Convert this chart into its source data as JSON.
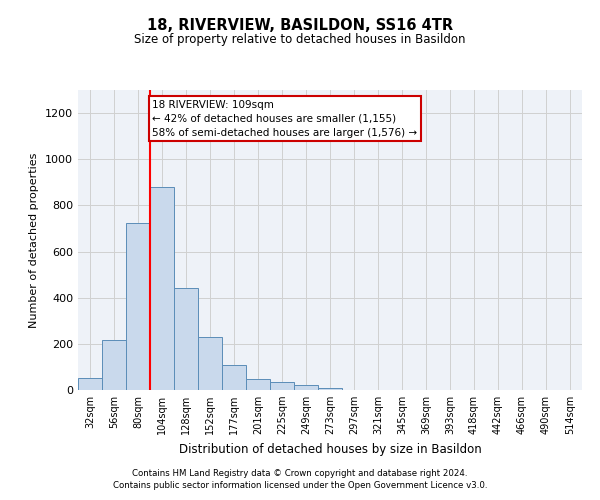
{
  "title": "18, RIVERVIEW, BASILDON, SS16 4TR",
  "subtitle": "Size of property relative to detached houses in Basildon",
  "xlabel": "Distribution of detached houses by size in Basildon",
  "ylabel": "Number of detached properties",
  "footer1": "Contains HM Land Registry data © Crown copyright and database right 2024.",
  "footer2": "Contains public sector information licensed under the Open Government Licence v3.0.",
  "bin_labels": [
    "32sqm",
    "56sqm",
    "80sqm",
    "104sqm",
    "128sqm",
    "152sqm",
    "177sqm",
    "201sqm",
    "225sqm",
    "249sqm",
    "273sqm",
    "297sqm",
    "321sqm",
    "345sqm",
    "369sqm",
    "393sqm",
    "418sqm",
    "442sqm",
    "466sqm",
    "490sqm",
    "514sqm"
  ],
  "bar_values": [
    50,
    215,
    725,
    880,
    440,
    230,
    108,
    47,
    35,
    22,
    10,
    0,
    0,
    0,
    0,
    0,
    0,
    0,
    0,
    0,
    0
  ],
  "bar_color": "#c9d9ec",
  "bar_edge_color": "#5b8db8",
  "grid_color": "#d0d0d0",
  "red_line_x": 3.0,
  "annotation_text": "18 RIVERVIEW: 109sqm\n← 42% of detached houses are smaller (1,155)\n58% of semi-detached houses are larger (1,576) →",
  "annotation_box_color": "#ffffff",
  "annotation_box_edge": "#cc0000",
  "ylim": [
    0,
    1300
  ],
  "yticks": [
    0,
    200,
    400,
    600,
    800,
    1000,
    1200
  ],
  "background_color": "#ffffff",
  "axes_bg_color": "#eef2f8"
}
